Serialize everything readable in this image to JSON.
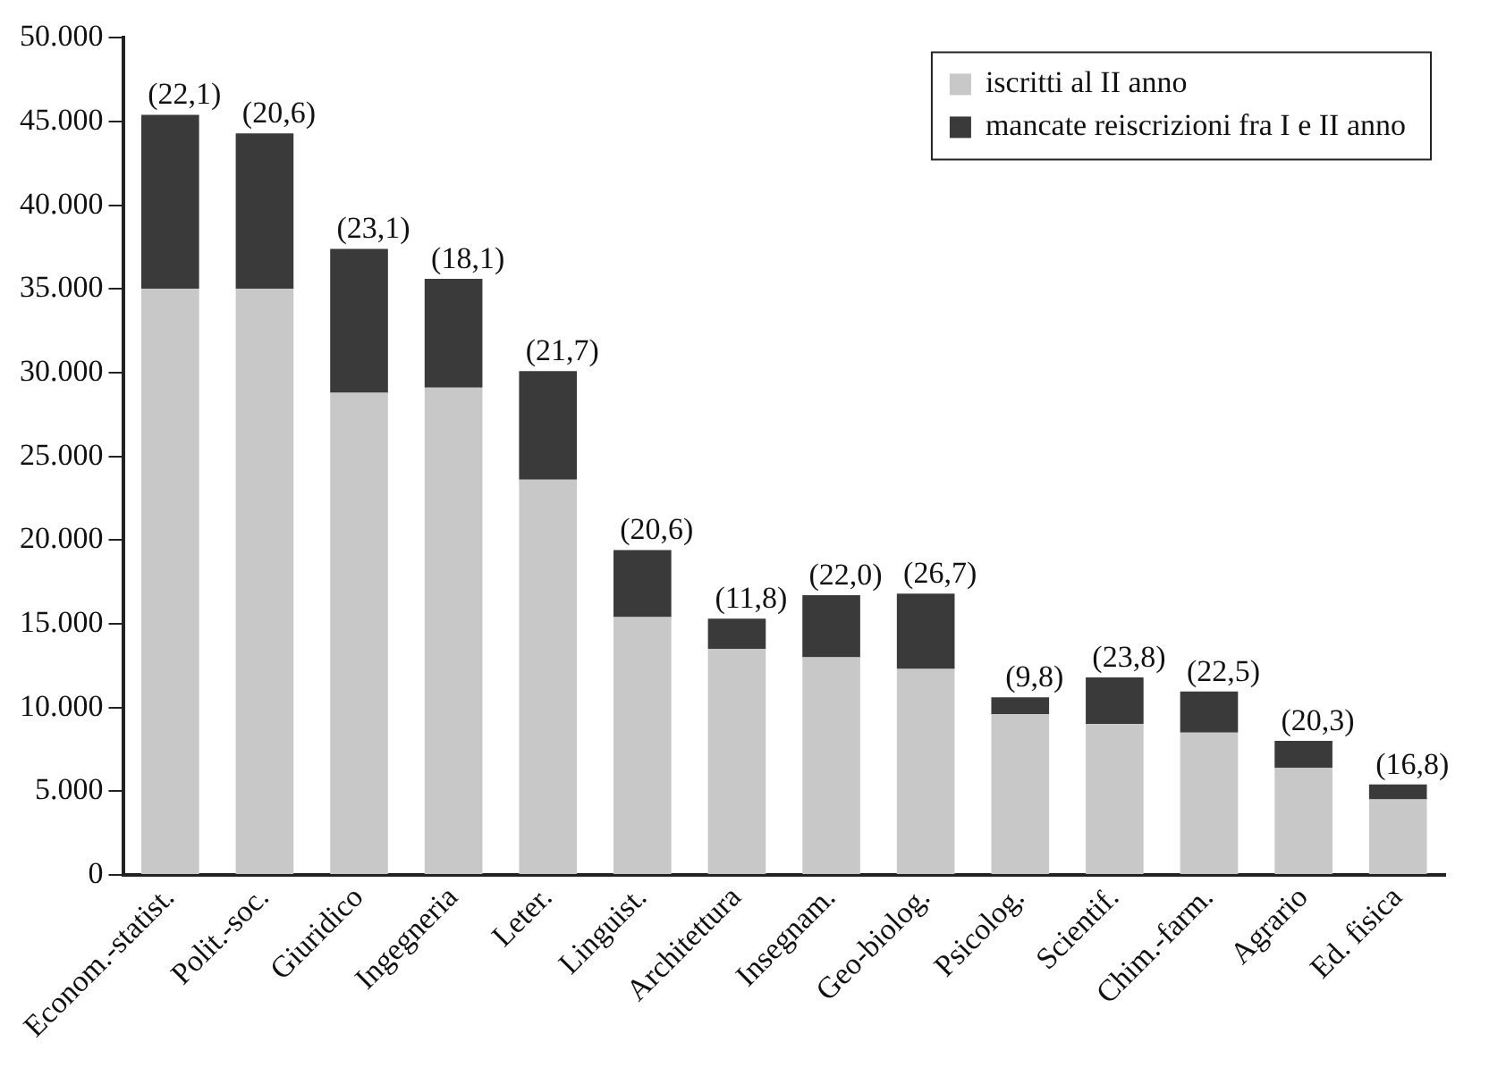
{
  "chart_data": {
    "type": "bar",
    "stacked": true,
    "categories": [
      "Econom.-statist.",
      "Polit.-soc.",
      "Giuridico",
      "Ingegneria",
      "Leter.",
      "Linguist.",
      "Architettura",
      "Insegnam.",
      "Geo-biolog.",
      "Psicolog.",
      "Scientif.",
      "Chim.-farm.",
      "Agrario",
      "Ed. fisica"
    ],
    "series": [
      {
        "name": "iscritti al II anno",
        "color": "#c8c8c8",
        "values": [
          35000,
          35000,
          28800,
          29100,
          23600,
          15400,
          13500,
          13000,
          12300,
          9600,
          9000,
          8500,
          6400,
          4500
        ]
      },
      {
        "name": "mancate reiscrizioni fra I e II anno",
        "color": "#3a3a3a",
        "values": [
          10400,
          9300,
          8600,
          6500,
          6500,
          4000,
          1800,
          3700,
          4500,
          1000,
          2800,
          2450,
          1600,
          900
        ]
      }
    ],
    "ylim": [
      0,
      50000
    ],
    "yticks": [
      {
        "value": 0,
        "label": "0"
      },
      {
        "value": 5000,
        "label": "5.000"
      },
      {
        "value": 10000,
        "label": "10.000"
      },
      {
        "value": 15000,
        "label": "15.000"
      },
      {
        "value": 20000,
        "label": "20.000"
      },
      {
        "value": 25000,
        "label": "25.000"
      },
      {
        "value": 30000,
        "label": "30.000"
      },
      {
        "value": 35000,
        "label": "35.000"
      },
      {
        "value": 40000,
        "label": "40.000"
      },
      {
        "value": 45000,
        "label": "45.000"
      },
      {
        "value": 50000,
        "label": "50.000"
      }
    ],
    "grid": false,
    "legend": "top right",
    "annotations": [
      {
        "text": "(22,1)",
        "x": "Econom.-statist.",
        "y": 45400
      },
      {
        "text": "(20,6)",
        "x": "Polit.-soc.",
        "y": 44300
      },
      {
        "text": "(23,1)",
        "x": "Giuridico",
        "y": 37400
      },
      {
        "text": "(18,1)",
        "x": "Ingegneria",
        "y": 35600
      },
      {
        "text": "(21,7)",
        "x": "Leter.",
        "y": 30100
      },
      {
        "text": "(20,6)",
        "x": "Linguist.",
        "y": 19400
      },
      {
        "text": "(11,8)",
        "x": "Architettura",
        "y": 15300
      },
      {
        "text": "(22,0)",
        "x": "Insegnam.",
        "y": 16700
      },
      {
        "text": "(26,7)",
        "x": "Geo-biolog.",
        "y": 16800
      },
      {
        "text": "(9,8)",
        "x": "Psicolog.",
        "y": 10600
      },
      {
        "text": "(23,8)",
        "x": "Scientif.",
        "y": 11800
      },
      {
        "text": "(22,5)",
        "x": "Chim.-farm.",
        "y": 10950
      },
      {
        "text": "(20,3)",
        "x": "Agrario",
        "y": 8000
      },
      {
        "text": "(16,8)",
        "x": "Ed. fisica",
        "y": 5400
      }
    ]
  }
}
